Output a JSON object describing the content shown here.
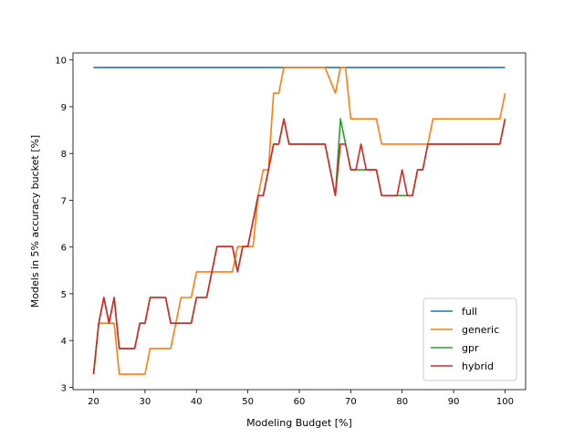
{
  "chart_data": {
    "type": "line",
    "title": "",
    "xlabel": "Modeling Budget [%]",
    "ylabel": "Models in 5% accuracy bucket [%]",
    "xlim": [
      16,
      104
    ],
    "ylim": [
      2.95,
      10.15
    ],
    "xticks": [
      20,
      30,
      40,
      50,
      60,
      70,
      80,
      90,
      100
    ],
    "yticks": [
      3,
      4,
      5,
      6,
      7,
      8,
      9,
      10
    ],
    "grid": false,
    "legend_placement": "lower-right",
    "series": [
      {
        "name": "full",
        "color": "#1f77b4",
        "points": [
          [
            20,
            9.84
          ],
          [
            100,
            9.84
          ]
        ]
      },
      {
        "name": "generic",
        "color": "#ff7f0e",
        "points": [
          [
            20,
            3.28
          ],
          [
            21,
            4.37
          ],
          [
            23,
            4.37
          ],
          [
            24,
            4.37
          ],
          [
            25,
            3.28
          ],
          [
            30,
            3.28
          ],
          [
            31,
            3.83
          ],
          [
            35,
            3.83
          ],
          [
            37,
            4.92
          ],
          [
            39,
            4.92
          ],
          [
            40,
            5.47
          ],
          [
            44,
            5.47
          ],
          [
            47,
            5.47
          ],
          [
            48,
            6.01
          ],
          [
            50,
            6.01
          ],
          [
            51,
            6.01
          ],
          [
            52,
            7.1
          ],
          [
            53,
            7.65
          ],
          [
            54,
            7.65
          ],
          [
            55,
            9.29
          ],
          [
            56,
            9.29
          ],
          [
            57,
            9.84
          ],
          [
            65,
            9.84
          ],
          [
            67,
            9.29
          ],
          [
            68,
            9.84
          ],
          [
            69,
            9.84
          ],
          [
            70,
            8.74
          ],
          [
            75,
            8.74
          ],
          [
            76,
            8.2
          ],
          [
            85,
            8.2
          ],
          [
            86,
            8.74
          ],
          [
            99,
            8.74
          ],
          [
            100,
            9.29
          ]
        ]
      },
      {
        "name": "gpr",
        "color": "#2ca02c",
        "points": [
          [
            20,
            3.28
          ],
          [
            21,
            4.37
          ],
          [
            22,
            4.92
          ],
          [
            23,
            4.37
          ],
          [
            24,
            4.92
          ],
          [
            25,
            3.83
          ],
          [
            28,
            3.83
          ],
          [
            29,
            4.37
          ],
          [
            30,
            4.37
          ],
          [
            31,
            4.92
          ],
          [
            34,
            4.92
          ],
          [
            35,
            4.37
          ],
          [
            39,
            4.37
          ],
          [
            40,
            4.92
          ],
          [
            42,
            4.92
          ],
          [
            44,
            6.01
          ],
          [
            47,
            6.01
          ],
          [
            48,
            5.47
          ],
          [
            49,
            6.01
          ],
          [
            50,
            6.01
          ],
          [
            52,
            7.1
          ],
          [
            53,
            7.1
          ],
          [
            54,
            7.65
          ],
          [
            55,
            8.2
          ],
          [
            56,
            8.2
          ],
          [
            57,
            8.74
          ],
          [
            58,
            8.2
          ],
          [
            65,
            8.2
          ],
          [
            67,
            7.1
          ],
          [
            68,
            8.74
          ],
          [
            69,
            8.2
          ],
          [
            70,
            7.65
          ],
          [
            71,
            7.65
          ],
          [
            72,
            7.65
          ],
          [
            75,
            7.65
          ],
          [
            76,
            7.1
          ],
          [
            79,
            7.1
          ],
          [
            82,
            7.1
          ],
          [
            83,
            7.65
          ],
          [
            84,
            7.65
          ],
          [
            85,
            8.2
          ],
          [
            99,
            8.2
          ],
          [
            100,
            8.74
          ]
        ]
      },
      {
        "name": "hybrid",
        "color": "#d62728",
        "points": [
          [
            20,
            3.28
          ],
          [
            21,
            4.37
          ],
          [
            22,
            4.92
          ],
          [
            23,
            4.37
          ],
          [
            24,
            4.92
          ],
          [
            25,
            3.83
          ],
          [
            28,
            3.83
          ],
          [
            29,
            4.37
          ],
          [
            30,
            4.37
          ],
          [
            31,
            4.92
          ],
          [
            34,
            4.92
          ],
          [
            35,
            4.37
          ],
          [
            39,
            4.37
          ],
          [
            40,
            4.92
          ],
          [
            42,
            4.92
          ],
          [
            44,
            6.01
          ],
          [
            47,
            6.01
          ],
          [
            48,
            5.47
          ],
          [
            49,
            6.01
          ],
          [
            50,
            6.01
          ],
          [
            52,
            7.1
          ],
          [
            53,
            7.1
          ],
          [
            54,
            7.65
          ],
          [
            55,
            8.2
          ],
          [
            56,
            8.2
          ],
          [
            57,
            8.74
          ],
          [
            58,
            8.2
          ],
          [
            65,
            8.2
          ],
          [
            67,
            7.1
          ],
          [
            68,
            8.2
          ],
          [
            69,
            8.2
          ],
          [
            70,
            7.65
          ],
          [
            71,
            7.65
          ],
          [
            72,
            8.2
          ],
          [
            73,
            7.65
          ],
          [
            75,
            7.65
          ],
          [
            76,
            7.1
          ],
          [
            79,
            7.1
          ],
          [
            80,
            7.65
          ],
          [
            81,
            7.1
          ],
          [
            82,
            7.1
          ],
          [
            83,
            7.65
          ],
          [
            84,
            7.65
          ],
          [
            85,
            8.2
          ],
          [
            99,
            8.2
          ],
          [
            100,
            8.74
          ]
        ]
      }
    ]
  }
}
